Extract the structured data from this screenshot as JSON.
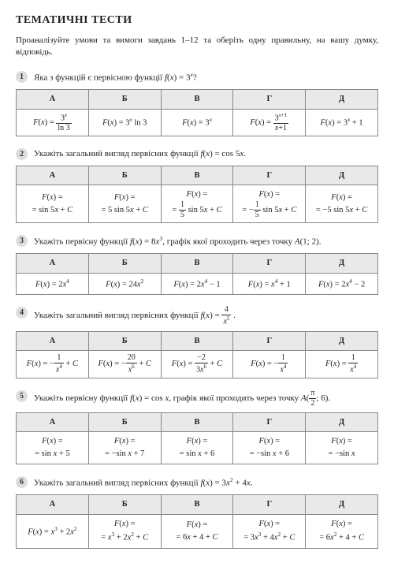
{
  "page_title": "ТЕМАТИЧНІ ТЕСТИ",
  "intro": "Проаналізуйте умови та вимоги завдань 1–12 та оберіть одну правильну, на вашу думку, відповідь.",
  "headers": [
    "А",
    "Б",
    "В",
    "Г",
    "Д"
  ],
  "questions": [
    {
      "num": "1",
      "text": "Яка з функцій є первісною функції <i>f</i>(<i>x</i>) = 3<sup><i>x</i></sup>?",
      "cells": [
        "<i>F</i>(<i>x</i>) = <span class='frac'><span class='n'>3<sup><i>x</i></sup></span><span class='d'>ln 3</span></span>",
        "<i>F</i>(<i>x</i>) = 3<sup><i>x</i></sup> ln 3",
        "<i>F</i>(<i>x</i>) = 3<sup><i>x</i></sup>",
        "<i>F</i>(<i>x</i>) = <span class='frac'><span class='n'>3<sup><i>x</i>+1</sup></span><span class='d'><i>x</i>+1</span></span>",
        "<i>F</i>(<i>x</i>) = 3<sup><i>x</i></sup> + 1"
      ]
    },
    {
      "num": "2",
      "text": "Укажіть загальний вигляд первісних функції <i>f</i>(<i>x</i>) = cos 5<i>x</i>.",
      "cells": [
        "<i>F</i>(<i>x</i>) =<br>= sin 5<i>x</i> + <i>C</i>",
        "<i>F</i>(<i>x</i>) =<br>= 5 sin 5<i>x</i> + <i>C</i>",
        "<i>F</i>(<i>x</i>) =<br>= <span class='frac'><span class='n'>1</span><span class='d'>5</span></span> sin 5<i>x</i> + <i>C</i>",
        "<i>F</i>(<i>x</i>) =<br>= −<span class='frac'><span class='n'>1</span><span class='d'>5</span></span> sin 5<i>x</i> + <i>C</i>",
        "<i>F</i>(<i>x</i>) =<br>= −5 sin 5<i>x</i> + <i>C</i>"
      ]
    },
    {
      "num": "3",
      "text": "Укажіть первісну функції <i>f</i>(<i>x</i>) = 8<i>x</i><sup>3</sup>, графік якої проходить через точку <i>A</i>(1; 2).",
      "cells": [
        "<i>F</i>(<i>x</i>) = 2<i>x</i><sup>4</sup>",
        "<i>F</i>(<i>x</i>) = 24<i>x</i><sup>2</sup>",
        "<i>F</i>(<i>x</i>) = 2<i>x</i><sup>4</sup> − 1",
        "<i>F</i>(<i>x</i>) = <i>x</i><sup>4</sup> + 1",
        "<i>F</i>(<i>x</i>) = 2<i>x</i><sup>4</sup> − 2"
      ]
    },
    {
      "num": "4",
      "text": "Укажіть загальний вигляд первісних функції <i>f</i>(<i>x</i>) = <span class='frac'><span class='n'>4</span><span class='d'><i>x</i><sup>5</sup></span></span> .",
      "cells": [
        "<i>F</i>(<i>x</i>) = −<span class='frac'><span class='n'>1</span><span class='d'><i>x</i><sup>4</sup></span></span> + <i>C</i>",
        "<i>F</i>(<i>x</i>) = −<span class='frac'><span class='n'>20</span><span class='d'><i>x</i><sup>6</sup></span></span> + <i>C</i>",
        "<i>F</i>(<i>x</i>) = <span class='frac'><span class='n'>−2</span><span class='d'>3<i>x</i><sup>6</sup></span></span> + <i>C</i>",
        "<i>F</i>(<i>x</i>) = −<span class='frac'><span class='n'>1</span><span class='d'><i>x</i><sup>4</sup></span></span>",
        "<i>F</i>(<i>x</i>) = <span class='frac'><span class='n'>1</span><span class='d'><i>x</i><sup>4</sup></span></span>"
      ]
    },
    {
      "num": "5",
      "text": "Укажіть первісну функції <i>f</i>(<i>x</i>) = cos <i>x</i>, графік якої проходить через точку <i>A</i>&#8288;(<span class='frac'><span class='n'>π</span><span class='d'>2</span></span>; 6).",
      "cells": [
        "<i>F</i>(<i>x</i>) =<br>= sin <i>x</i> + 5",
        "<i>F</i>(<i>x</i>) =<br>= −sin <i>x</i> + 7",
        "<i>F</i>(<i>x</i>) =<br>= sin <i>x</i> + 6",
        "<i>F</i>(<i>x</i>) =<br>= −sin <i>x</i> + 6",
        "<i>F</i>(<i>x</i>) =<br>= −sin <i>x</i>"
      ]
    },
    {
      "num": "6",
      "text": "Укажіть загальний вигляд первісних функції <i>f</i>(<i>x</i>) = 3<i>x</i><sup>2</sup> + 4<i>x</i>.",
      "cells": [
        "<i>F</i>(<i>x</i>) = <i>x</i><sup>3</sup> + 2<i>x</i><sup>2</sup>",
        "<i>F</i>(<i>x</i>) =<br>= <i>x</i><sup>3</sup> + 2<i>x</i><sup>2</sup> + <i>C</i>",
        "<i>F</i>(<i>x</i>) =<br>= 6<i>x</i> + 4 + <i>C</i>",
        "<i>F</i>(<i>x</i>) =<br>= 3<i>x</i><sup>3</sup> + 4<i>x</i><sup>2</sup> + <i>C</i>",
        "<i>F</i>(<i>x</i>) =<br>= 6<i>x</i><sup>2</sup> + 4 + <i>C</i>"
      ]
    }
  ]
}
